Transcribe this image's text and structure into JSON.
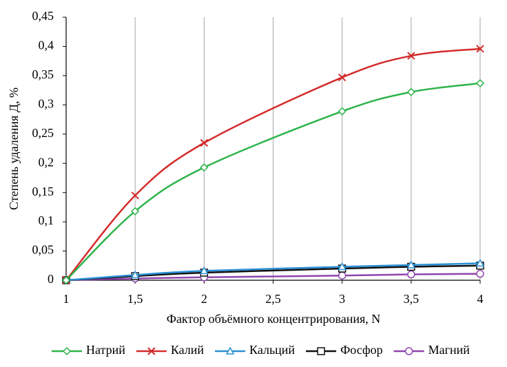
{
  "chart_data": {
    "type": "line",
    "x_label": "Фактор объёмного концентрирования, N",
    "y_label": "Степень удаления Д, %",
    "x": [
      1,
      1.5,
      2,
      3,
      3.5,
      4
    ],
    "series": [
      {
        "name": "Натрий",
        "color": "#2db34a",
        "marker": "diamond",
        "values": [
          0,
          0.118,
          0.193,
          0.289,
          0.322,
          0.337
        ]
      },
      {
        "name": "Калий",
        "color": "#d42a2a",
        "marker": "x",
        "values": [
          0,
          0.145,
          0.235,
          0.347,
          0.384,
          0.396
        ]
      },
      {
        "name": "Кальций",
        "color": "#2a8fd4",
        "marker": "triangle",
        "values": [
          0,
          0.009,
          0.016,
          0.023,
          0.026,
          0.029
        ]
      },
      {
        "name": "Фосфор",
        "color": "#111111",
        "marker": "square",
        "values": [
          0,
          0.007,
          0.013,
          0.02,
          0.023,
          0.025
        ]
      },
      {
        "name": "Магний",
        "color": "#8e44ad",
        "marker": "circle",
        "values": [
          0,
          0.003,
          0.005,
          0.008,
          0.01,
          0.011
        ]
      }
    ],
    "xlim": [
      1,
      4
    ],
    "xticks": [
      1,
      {
        "value": 1.5,
        "label": "1,5"
      },
      2,
      {
        "value": 2.5,
        "label": "2,5"
      },
      3,
      {
        "value": 3.5,
        "label": "3,5"
      },
      4
    ],
    "ylim": [
      0,
      0.45
    ],
    "yticks": [
      0,
      {
        "value": 0.05,
        "label": "0,05"
      },
      {
        "value": 0.1,
        "label": "0,1"
      },
      {
        "value": 0.15,
        "label": "0,15"
      },
      {
        "value": 0.2,
        "label": "0,2"
      },
      {
        "value": 0.25,
        "label": "0,25"
      },
      {
        "value": 0.3,
        "label": "0,3"
      },
      {
        "value": 0.35,
        "label": "0,35"
      },
      {
        "value": 0.4,
        "label": "0,4"
      },
      {
        "value": 0.45,
        "label": "0,45"
      }
    ],
    "grid": "x",
    "legend": "bottom"
  }
}
